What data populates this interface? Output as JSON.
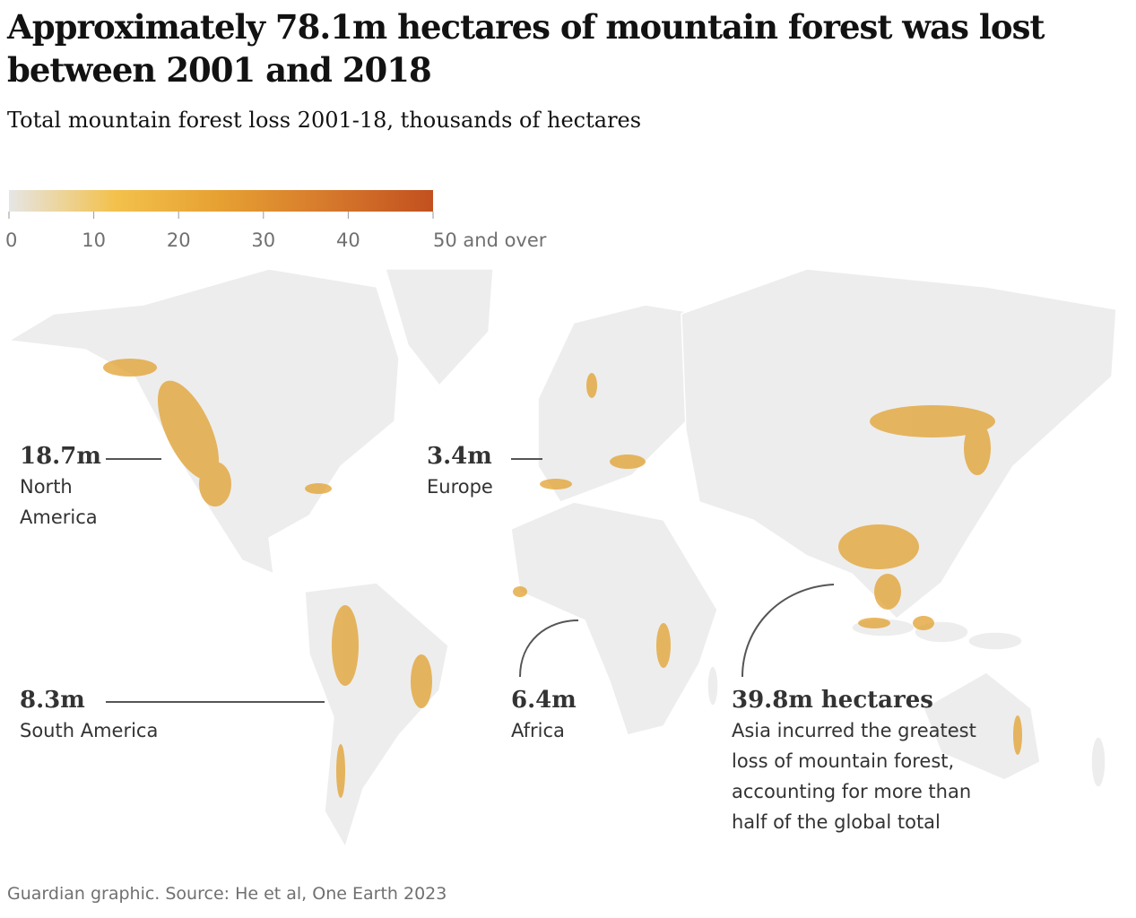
{
  "title": "Approximately 78.1m hectares of mountain forest was lost between 2001 and 2018",
  "subtitle": "Total mountain forest loss 2001-18, thousands of hectares",
  "legend": {
    "range": [
      0,
      50
    ],
    "ticks": [
      0,
      10,
      20,
      30,
      40,
      {
        "value": 50,
        "label": "50 and over"
      }
    ],
    "colors": [
      "#e6e6e6",
      "#f3c14c",
      "#e6a032",
      "#d6792c",
      "#c2501f"
    ]
  },
  "annotations": [
    {
      "value": "18.7m",
      "region": "North America"
    },
    {
      "value": "3.4m",
      "region": "Europe"
    },
    {
      "value": "8.3m",
      "region": "South America"
    },
    {
      "value": "6.4m",
      "region": "Africa"
    },
    {
      "value": "39.8m hectares",
      "region": "Asia incurred the greatest loss of mountain forest, accounting for more than half of the global total"
    }
  ],
  "source": "Guardian graphic. Source: He et al, One Earth 2023"
}
